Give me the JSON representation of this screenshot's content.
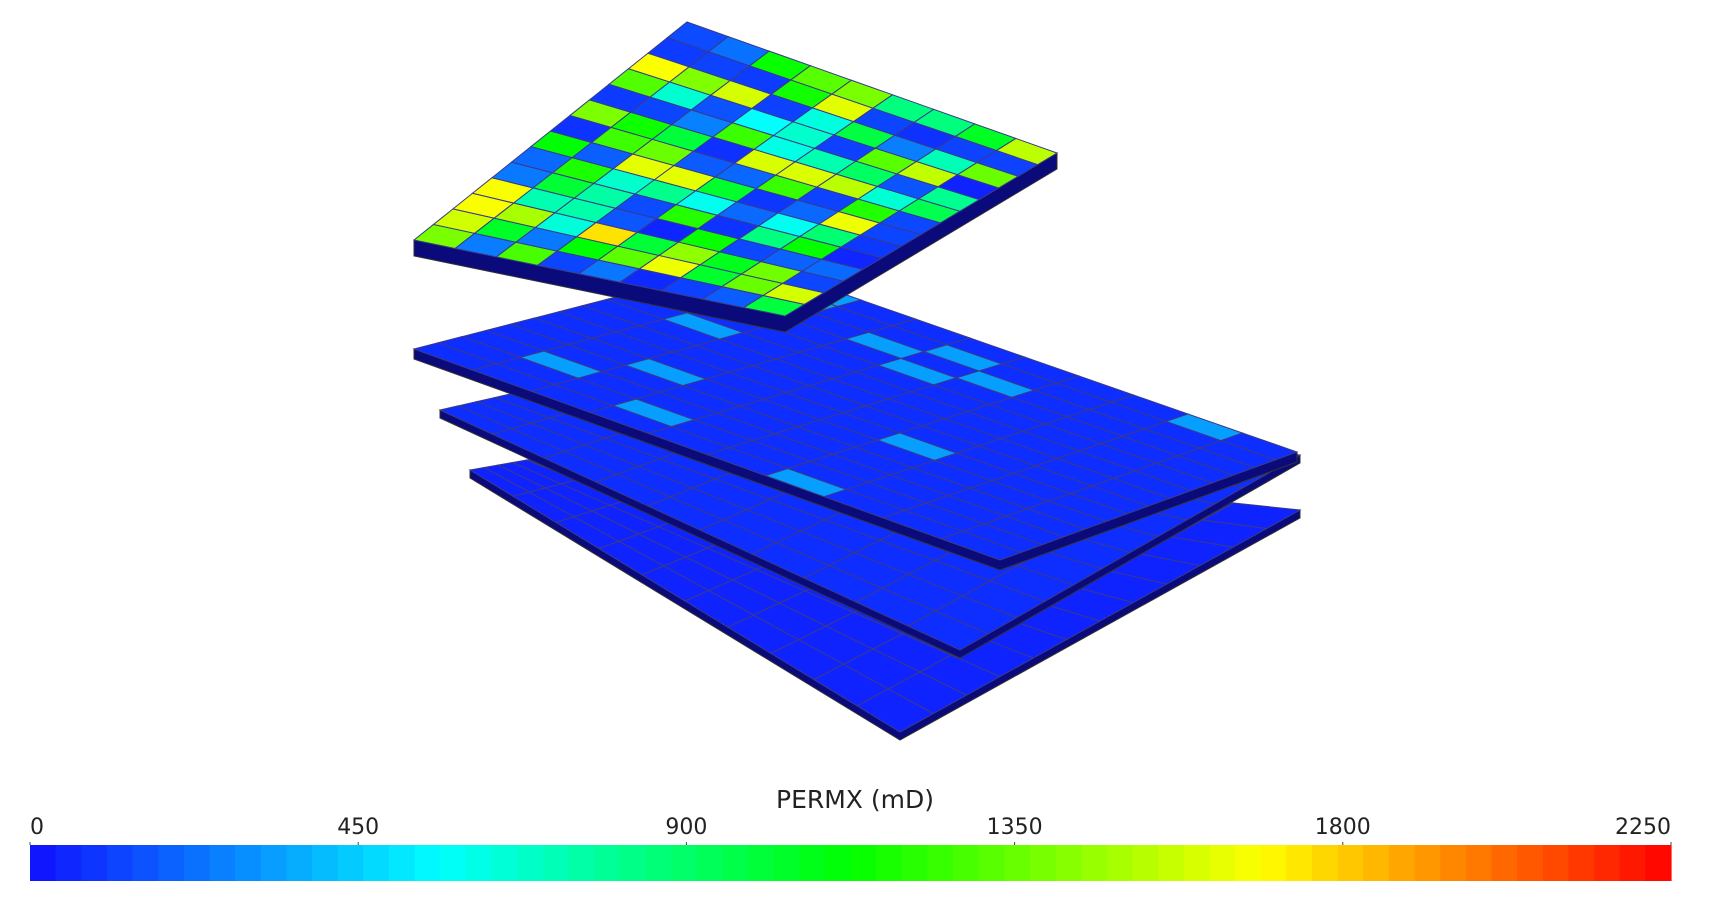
{
  "colorbar": {
    "title": "PERMX (mD)",
    "range": [
      0,
      2250
    ],
    "ticks": [
      0,
      450,
      900,
      1350,
      1800,
      2250
    ],
    "colormap": [
      "#1010ff",
      "#00ffff",
      "#00ff00",
      "#ffff00",
      "#ff0000"
    ]
  }
}
